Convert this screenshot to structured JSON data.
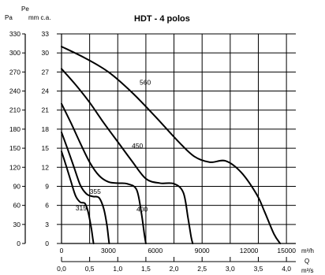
{
  "chart_data": {
    "type": "line",
    "title": "HDT - 4 polos",
    "y_units": [
      "Pa",
      "mm c.a."
    ],
    "y_unit_top": "Pe",
    "x_units": [
      "m³/h",
      "m³/s"
    ],
    "x_unit_label": "Q",
    "y_ticks_pa": [
      "0",
      "30",
      "60",
      "90",
      "120",
      "150",
      "180",
      "210",
      "240",
      "270",
      "300",
      "330"
    ],
    "y_ticks_mm": [
      "0",
      "3",
      "6",
      "9",
      "12",
      "15",
      "18",
      "21",
      "24",
      "27",
      "30",
      "33"
    ],
    "x_ticks_m3h": [
      "0",
      "3000",
      "6000",
      "9000",
      "12000",
      "15000"
    ],
    "x_ticks_m3s": [
      "0,0",
      "0,5",
      "1,0",
      "1,5",
      "2,0",
      "2,5",
      "3,0",
      "3,5",
      "4,0"
    ],
    "xlim_m3h": [
      0,
      15000
    ],
    "ylim_pa": [
      0,
      330
    ],
    "grid": true,
    "series": [
      {
        "name": "315",
        "x": [
          0,
          300,
          600,
          900,
          1200,
          1500,
          1700,
          1900,
          2000,
          2050
        ],
        "y": [
          145,
          122,
          98,
          75,
          65,
          63,
          50,
          25,
          8,
          0
        ]
      },
      {
        "name": "355",
        "x": [
          0,
          400,
          800,
          1200,
          1600,
          2000,
          2400,
          2700,
          2900,
          3000,
          3050
        ],
        "y": [
          175,
          148,
          120,
          92,
          78,
          74,
          72,
          55,
          30,
          10,
          0
        ]
      },
      {
        "name": "400",
        "x": [
          0,
          600,
          1200,
          1800,
          2400,
          3000,
          3600,
          4200,
          4800,
          5100,
          5300,
          5400
        ],
        "y": [
          220,
          190,
          158,
          128,
          107,
          97,
          95,
          94,
          85,
          50,
          15,
          0
        ]
      },
      {
        "name": "450",
        "x": [
          0,
          900,
          1800,
          2700,
          3600,
          4500,
          5400,
          6300,
          7200,
          7800,
          8100,
          8300,
          8400
        ],
        "y": [
          275,
          250,
          222,
          190,
          160,
          130,
          102,
          95,
          94,
          80,
          40,
          10,
          0
        ]
      },
      {
        "name": "560",
        "x": [
          0,
          1500,
          3000,
          4500,
          6000,
          7500,
          8500,
          9500,
          10500,
          11500,
          12500,
          13000,
          13600,
          14000
        ],
        "y": [
          310,
          292,
          270,
          238,
          200,
          160,
          137,
          128,
          130,
          112,
          77,
          50,
          15,
          0
        ]
      }
    ],
    "curve_labels": [
      "315",
      "355",
      "400",
      "450",
      "560"
    ]
  }
}
